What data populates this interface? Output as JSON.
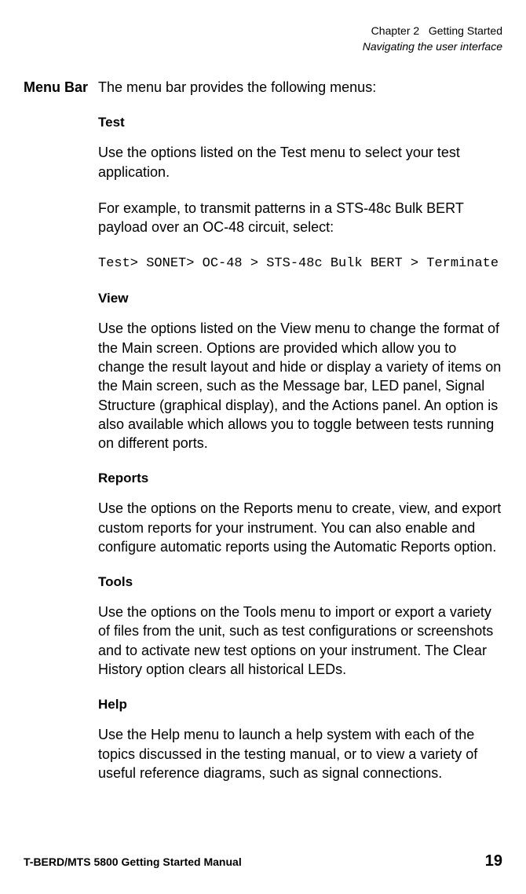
{
  "header": {
    "chapter_prefix": "Chapter 2",
    "chapter_title": "Getting Started",
    "section": "Navigating the user interface"
  },
  "margin_label": "Menu Bar",
  "intro": "The menu bar provides the following menus:",
  "sections": {
    "test": {
      "heading": "Test",
      "p1": "Use the options listed on the Test menu to select your test application.",
      "p2": "For example, to transmit patterns in a STS-48c Bulk BERT payload over an OC-48 circuit, select:",
      "code": "Test> SONET> OC-48 > STS-48c Bulk BERT > Terminate"
    },
    "view": {
      "heading": "View",
      "p1": "Use the options listed on the View menu to change the format of the Main screen. Options are provided which allow you to change the result layout and hide or display a variety of items on the Main screen, such as the Message bar, LED panel, Signal Structure (graphical display), and the Actions panel. An option is also available which allows you to toggle between tests running on different ports."
    },
    "reports": {
      "heading": "Reports",
      "p1": "Use the options on the Reports menu to create, view, and export custom reports for your instrument. You can also enable and configure automatic reports using the Automatic Reports option."
    },
    "tools": {
      "heading": "Tools",
      "p1": "Use the options on the Tools menu to import or export a variety of files from the unit, such as test configurations or screenshots and to activate new test options on your instrument. The Clear History option clears all historical LEDs."
    },
    "help": {
      "heading": "Help",
      "p1": "Use the Help menu to launch a help system with each of the topics discussed in the testing manual, or to view a variety of useful reference diagrams, such as signal connections."
    }
  },
  "footer": {
    "manual": "T-BERD/MTS 5800 Getting Started Manual",
    "page": "19"
  }
}
